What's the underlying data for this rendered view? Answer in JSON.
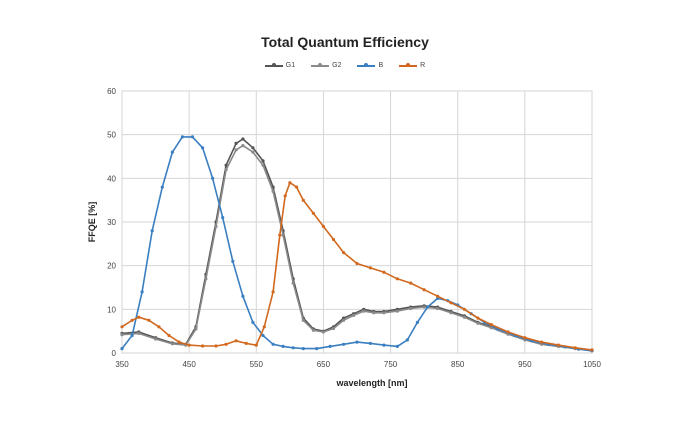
{
  "chart_data": {
    "type": "line",
    "title": "Total Quantum Efficiency",
    "xlabel": "wavelength [nm]",
    "ylabel": "FFQE [%]",
    "xlim": [
      350,
      1050
    ],
    "ylim": [
      0,
      60
    ],
    "x_ticks": [
      "350",
      "450",
      "550",
      "650",
      "750",
      "850",
      "950",
      "1050"
    ],
    "y_ticks": [
      "0",
      "10",
      "20",
      "30",
      "40",
      "50",
      "60"
    ],
    "grid": true,
    "legend_position": "top",
    "series": [
      {
        "name": "G1",
        "color": "#555555",
        "points": [
          [
            350,
            4.5
          ],
          [
            375,
            4.8
          ],
          [
            400,
            3.5
          ],
          [
            425,
            2.3
          ],
          [
            445,
            2.0
          ],
          [
            460,
            6
          ],
          [
            475,
            18
          ],
          [
            490,
            30
          ],
          [
            505,
            43
          ],
          [
            520,
            48
          ],
          [
            530,
            49
          ],
          [
            545,
            47
          ],
          [
            560,
            44
          ],
          [
            575,
            38
          ],
          [
            590,
            28
          ],
          [
            605,
            17
          ],
          [
            620,
            8
          ],
          [
            635,
            5.5
          ],
          [
            650,
            5
          ],
          [
            665,
            6
          ],
          [
            680,
            8
          ],
          [
            695,
            9
          ],
          [
            710,
            10
          ],
          [
            725,
            9.5
          ],
          [
            740,
            9.5
          ],
          [
            760,
            10
          ],
          [
            780,
            10.5
          ],
          [
            800,
            10.8
          ],
          [
            820,
            10.5
          ],
          [
            840,
            9.5
          ],
          [
            860,
            8.5
          ],
          [
            880,
            7
          ],
          [
            900,
            6
          ],
          [
            925,
            4.5
          ],
          [
            950,
            3.2
          ],
          [
            975,
            2.2
          ],
          [
            1000,
            1.6
          ],
          [
            1025,
            1.1
          ],
          [
            1050,
            0.6
          ]
        ]
      },
      {
        "name": "G2",
        "color": "#8a8a8a",
        "points": [
          [
            350,
            4.2
          ],
          [
            375,
            4.5
          ],
          [
            400,
            3.2
          ],
          [
            425,
            2.1
          ],
          [
            445,
            1.8
          ],
          [
            460,
            5.5
          ],
          [
            475,
            17
          ],
          [
            490,
            29
          ],
          [
            505,
            42
          ],
          [
            520,
            46.5
          ],
          [
            530,
            47.5
          ],
          [
            545,
            46
          ],
          [
            560,
            43
          ],
          [
            575,
            37
          ],
          [
            590,
            27
          ],
          [
            605,
            16
          ],
          [
            620,
            7.5
          ],
          [
            635,
            5.2
          ],
          [
            650,
            4.8
          ],
          [
            665,
            5.6
          ],
          [
            680,
            7.5
          ],
          [
            695,
            8.6
          ],
          [
            710,
            9.6
          ],
          [
            725,
            9.2
          ],
          [
            740,
            9.2
          ],
          [
            760,
            9.6
          ],
          [
            780,
            10.2
          ],
          [
            800,
            10.5
          ],
          [
            820,
            10.2
          ],
          [
            840,
            9.2
          ],
          [
            860,
            8.2
          ],
          [
            880,
            6.8
          ],
          [
            900,
            5.8
          ],
          [
            925,
            4.3
          ],
          [
            950,
            3.0
          ],
          [
            975,
            2.0
          ],
          [
            1000,
            1.5
          ],
          [
            1025,
            1.0
          ],
          [
            1050,
            0.5
          ]
        ]
      },
      {
        "name": "B",
        "color": "#3a7fc1",
        "points": [
          [
            350,
            1
          ],
          [
            365,
            4
          ],
          [
            380,
            14
          ],
          [
            395,
            28
          ],
          [
            410,
            38
          ],
          [
            425,
            46
          ],
          [
            440,
            49.5
          ],
          [
            455,
            49.5
          ],
          [
            470,
            47
          ],
          [
            485,
            40
          ],
          [
            500,
            31
          ],
          [
            515,
            21
          ],
          [
            530,
            13
          ],
          [
            545,
            7
          ],
          [
            560,
            4
          ],
          [
            575,
            2
          ],
          [
            590,
            1.5
          ],
          [
            605,
            1.2
          ],
          [
            620,
            1
          ],
          [
            640,
            1
          ],
          [
            660,
            1.5
          ],
          [
            680,
            2
          ],
          [
            700,
            2.5
          ],
          [
            720,
            2.2
          ],
          [
            740,
            1.8
          ],
          [
            760,
            1.5
          ],
          [
            775,
            3
          ],
          [
            790,
            7
          ],
          [
            805,
            10.5
          ],
          [
            820,
            12.5
          ],
          [
            835,
            12
          ],
          [
            850,
            11
          ],
          [
            870,
            9
          ],
          [
            890,
            7
          ],
          [
            910,
            5.5
          ],
          [
            935,
            4
          ],
          [
            960,
            2.8
          ],
          [
            985,
            2
          ],
          [
            1010,
            1.4
          ],
          [
            1030,
            0.9
          ],
          [
            1050,
            0.5
          ]
        ]
      },
      {
        "name": "R",
        "color": "#d2691e",
        "points": [
          [
            350,
            6
          ],
          [
            365,
            7.5
          ],
          [
            375,
            8.2
          ],
          [
            390,
            7.5
          ],
          [
            405,
            6
          ],
          [
            420,
            4
          ],
          [
            435,
            2.5
          ],
          [
            450,
            1.8
          ],
          [
            470,
            1.6
          ],
          [
            490,
            1.6
          ],
          [
            505,
            2
          ],
          [
            520,
            2.8
          ],
          [
            535,
            2.2
          ],
          [
            550,
            1.8
          ],
          [
            562,
            6
          ],
          [
            575,
            14
          ],
          [
            585,
            27
          ],
          [
            593,
            36
          ],
          [
            600,
            39
          ],
          [
            610,
            38
          ],
          [
            620,
            35
          ],
          [
            635,
            32
          ],
          [
            650,
            29
          ],
          [
            665,
            26
          ],
          [
            680,
            23
          ],
          [
            700,
            20.5
          ],
          [
            720,
            19.5
          ],
          [
            740,
            18.5
          ],
          [
            760,
            17
          ],
          [
            780,
            16
          ],
          [
            800,
            14.5
          ],
          [
            820,
            13
          ],
          [
            840,
            11.5
          ],
          [
            860,
            10
          ],
          [
            880,
            8
          ],
          [
            900,
            6.5
          ],
          [
            925,
            4.8
          ],
          [
            950,
            3.5
          ],
          [
            975,
            2.5
          ],
          [
            1000,
            1.8
          ],
          [
            1025,
            1.2
          ],
          [
            1050,
            0.7
          ]
        ]
      }
    ]
  }
}
